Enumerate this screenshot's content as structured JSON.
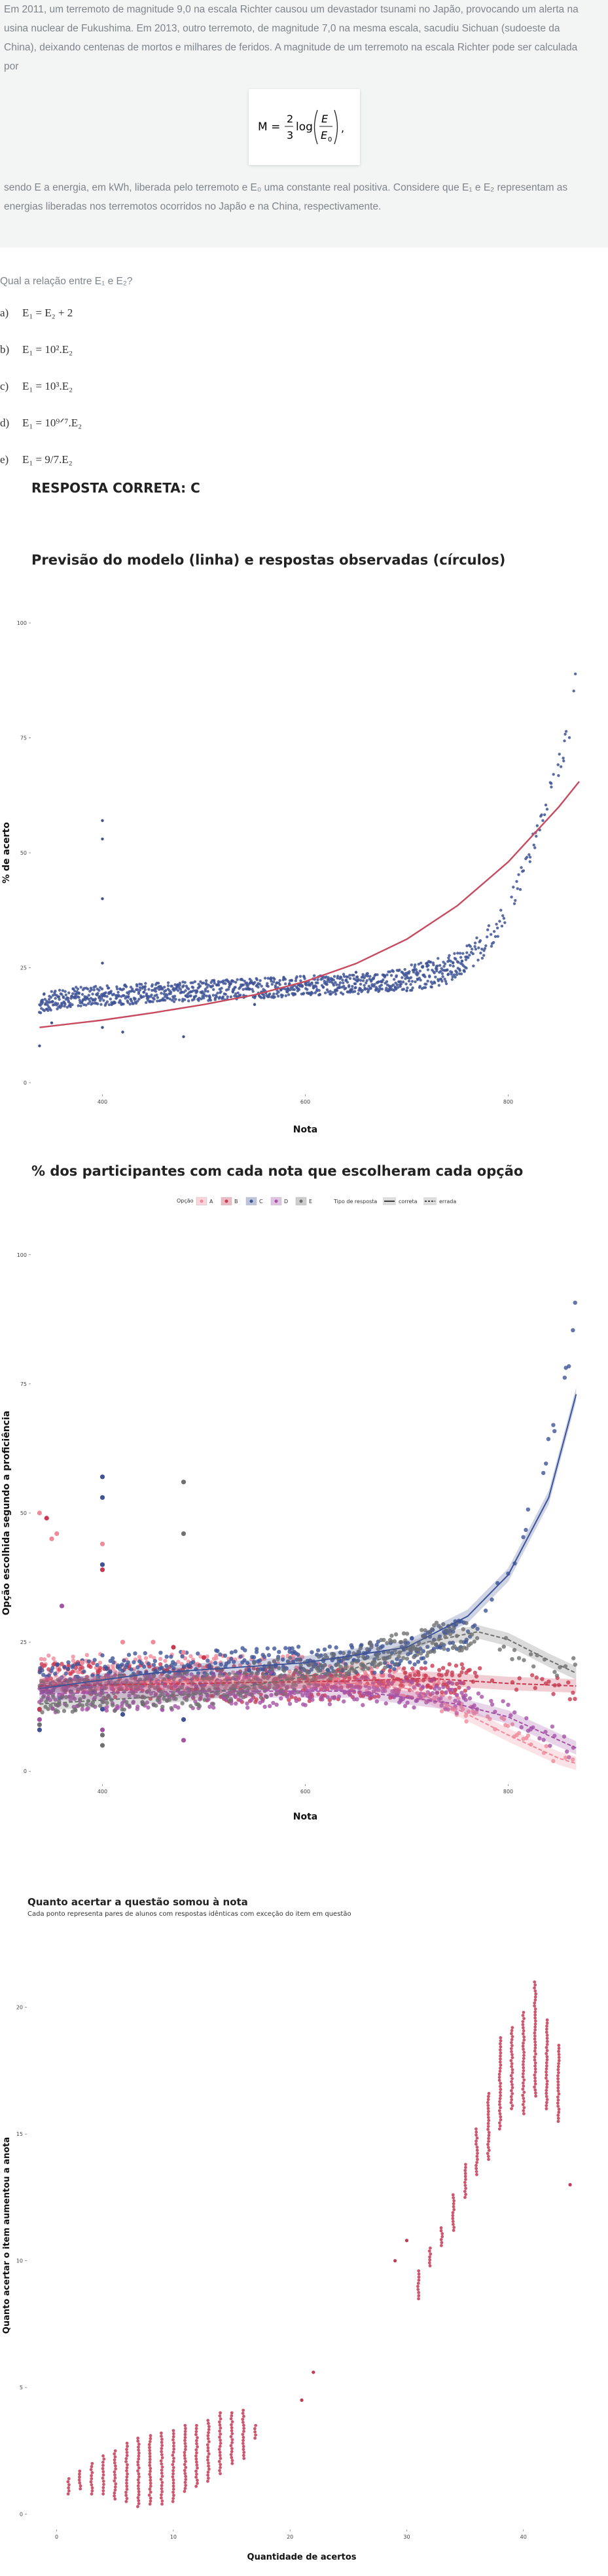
{
  "question": {
    "text_lines": [
      "Em 2011, um terremoto de magnitude 9,0 na escala Richter causou um devastador tsunami no Japão, provocando um alerta na",
      "usina nuclear de Fukushima. Em 2013, outro terremoto, de magnitude 7,0 na mesma escala, sacudiu Sichuan (sudoeste da",
      "China), deixando centenas de mortos e milhares de feridos. A magnitude de um terremoto na escala Richter pode ser calculada",
      "por"
    ],
    "formula": {
      "lhs": "M =",
      "num": "2",
      "den": "3",
      "log": "log",
      "frac_num": "E",
      "frac_den": "E",
      "frac_den_sub": "0",
      "tail": ","
    },
    "text_after_lines": [
      "sendo E a energia, em kWh, liberada pelo terremoto e E₀ uma constante real positiva. Considere que E₁ e E₂ representam as",
      "energias liberadas nos terremotos ocorridos no Japão e na China, respectivamente."
    ],
    "prompt": "Qual a relação entre E₁ e E₂?",
    "alternatives": [
      {
        "letter": "a)",
        "text": "E₁ = E₂ + 2"
      },
      {
        "letter": "b)",
        "text": "E₁ = 10².E₂"
      },
      {
        "letter": "c)",
        "text": "E₁ = 10³.E₂"
      },
      {
        "letter": "d)",
        "text": "E₁ = 10⁹ᐟ⁷.E₂"
      },
      {
        "letter": "e)",
        "text": "E₁ = 9/7.E₂"
      }
    ],
    "answer": "RESPOSTA CORRETA: C"
  },
  "chart_data": [
    {
      "type": "scatter",
      "title": "Previsão do modelo (linha) e respostas observadas (círculos)",
      "xlabel": "Nota",
      "ylabel": "% de acerto",
      "x_ticks": [
        400,
        600,
        800
      ],
      "y_ticks": [
        0,
        25,
        50,
        75,
        100
      ],
      "xlim": [
        330,
        870
      ],
      "ylim": [
        -2,
        102
      ],
      "series": [
        {
          "kind": "observed",
          "color": "#3f5497",
          "trend": [
            [
              338,
              17
            ],
            [
              360,
              18.5
            ],
            [
              400,
              19
            ],
            [
              450,
              19.5
            ],
            [
              500,
              20
            ],
            [
              550,
              20.5
            ],
            [
              600,
              21
            ],
            [
              650,
              21.5
            ],
            [
              700,
              22.5
            ],
            [
              740,
              24.5
            ],
            [
              760,
              27
            ],
            [
              780,
              31
            ],
            [
              800,
              38
            ],
            [
              810,
              43
            ],
            [
              820,
              49
            ],
            [
              830,
              56
            ],
            [
              840,
              63
            ],
            [
              850,
              69
            ],
            [
              860,
              76
            ],
            [
              867,
              90
            ]
          ],
          "outliers": [
            [
              400,
              57
            ],
            [
              400,
              53
            ],
            [
              400,
              40
            ],
            [
              400,
              26
            ],
            [
              338,
              8
            ],
            [
              400,
              12
            ],
            [
              350,
              13
            ],
            [
              420,
              11
            ],
            [
              480,
              10
            ],
            [
              550,
              17
            ],
            [
              650,
              24
            ],
            [
              700,
              20
            ],
            [
              720,
              26
            ]
          ]
        },
        {
          "kind": "model",
          "color": "#c84a5f",
          "points": [
            [
              338,
              12
            ],
            [
              400,
              13.6
            ],
            [
              450,
              15.2
            ],
            [
              500,
              17
            ],
            [
              550,
              19.1
            ],
            [
              600,
              22
            ],
            [
              650,
              25.9
            ],
            [
              700,
              31.2
            ],
            [
              750,
              38.5
            ],
            [
              800,
              48
            ],
            [
              850,
              60
            ],
            [
              870,
              65.5
            ]
          ]
        }
      ]
    },
    {
      "type": "scatter",
      "title": "% dos participantes com cada nota que escolheram cada opção",
      "xlabel": "Nota",
      "ylabel": "Opção escolhida segundo a proficiência",
      "x_ticks": [
        400,
        600,
        800
      ],
      "y_ticks": [
        0,
        25,
        50,
        75,
        100
      ],
      "xlim": [
        330,
        870
      ],
      "ylim": [
        -2,
        102
      ],
      "legend": {
        "option_title": "Opção",
        "options": [
          {
            "name": "A",
            "color": "#f08a9b"
          },
          {
            "name": "B",
            "color": "#c93a52"
          },
          {
            "name": "C",
            "color": "#3f5497"
          },
          {
            "name": "D",
            "color": "#a552a6"
          },
          {
            "name": "E",
            "color": "#6f7070"
          }
        ],
        "type_title": "Tipo de resposta",
        "types": [
          {
            "name": "correta",
            "style": "solid"
          },
          {
            "name": "errada",
            "style": "dashed"
          }
        ]
      },
      "series": [
        {
          "name": "A",
          "color": "#f08a9b",
          "trend": [
            [
              338,
              19
            ],
            [
              400,
              19.5
            ],
            [
              500,
              19
            ],
            [
              600,
              19
            ],
            [
              680,
              18
            ],
            [
              720,
              16
            ],
            [
              760,
              12
            ],
            [
              800,
              8
            ],
            [
              840,
              3.5
            ],
            [
              867,
              1
            ]
          ],
          "model": [
            [
              338,
              17
            ],
            [
              500,
              17.5
            ],
            [
              650,
              17
            ],
            [
              700,
              16
            ],
            [
              750,
              12
            ],
            [
              800,
              7
            ],
            [
              850,
              2.5
            ],
            [
              867,
              1.5
            ]
          ]
        },
        {
          "name": "B",
          "color": "#c93a52",
          "trend": [
            [
              338,
              18
            ],
            [
              400,
              17.5
            ],
            [
              500,
              17
            ],
            [
              600,
              16.5
            ],
            [
              700,
              17
            ],
            [
              760,
              18
            ],
            [
              800,
              17.5
            ],
            [
              840,
              16
            ],
            [
              867,
              16
            ]
          ],
          "model": [
            [
              338,
              16.5
            ],
            [
              500,
              17
            ],
            [
              650,
              17.5
            ],
            [
              720,
              18
            ],
            [
              800,
              17
            ],
            [
              867,
              16.5
            ]
          ]
        },
        {
          "name": "C",
          "color": "#3f5497",
          "trend": [
            [
              338,
              17
            ],
            [
              400,
              19
            ],
            [
              500,
              20
            ],
            [
              600,
              21
            ],
            [
              700,
              22.5
            ],
            [
              760,
              27
            ],
            [
              800,
              38
            ],
            [
              830,
              56
            ],
            [
              850,
              69
            ],
            [
              867,
              90
            ]
          ],
          "model": [
            [
              338,
              16
            ],
            [
              450,
              19
            ],
            [
              600,
              21
            ],
            [
              700,
              24
            ],
            [
              760,
              30
            ],
            [
              800,
              38
            ],
            [
              840,
              53
            ],
            [
              867,
              73
            ]
          ]
        },
        {
          "name": "D",
          "color": "#a552a6",
          "trend": [
            [
              338,
              14.5
            ],
            [
              400,
              15
            ],
            [
              500,
              15.5
            ],
            [
              600,
              16
            ],
            [
              700,
              15.5
            ],
            [
              760,
              14
            ],
            [
              800,
              12
            ],
            [
              840,
              7
            ],
            [
              867,
              3.5
            ]
          ],
          "model": [
            [
              338,
              15
            ],
            [
              500,
              15.5
            ],
            [
              650,
              15.5
            ],
            [
              750,
              13
            ],
            [
              800,
              10.5
            ],
            [
              850,
              6
            ],
            [
              867,
              4.5
            ]
          ]
        },
        {
          "name": "E",
          "color": "#6f7070",
          "trend": [
            [
              338,
              14
            ],
            [
              400,
              15
            ],
            [
              500,
              16
            ],
            [
              600,
              19
            ],
            [
              700,
              24
            ],
            [
              740,
              26.5
            ],
            [
              770,
              26
            ],
            [
              800,
              24
            ],
            [
              840,
              21
            ],
            [
              867,
              20
            ]
          ],
          "model": [
            [
              338,
              13
            ],
            [
              500,
              15
            ],
            [
              650,
              20
            ],
            [
              720,
              25
            ],
            [
              770,
              27
            ],
            [
              800,
              25.5
            ],
            [
              840,
              21.5
            ],
            [
              867,
              19
            ]
          ]
        }
      ],
      "outliers": [
        {
          "color": "#f08a9b",
          "points": [
            [
              338,
              50
            ],
            [
              350,
              45
            ],
            [
              355,
              46
            ],
            [
              400,
              44
            ],
            [
              420,
              25
            ],
            [
              450,
              25
            ],
            [
              480,
              23
            ],
            [
              380,
              21
            ],
            [
              400,
              18
            ]
          ]
        },
        {
          "color": "#c93a52",
          "points": [
            [
              345,
              49
            ],
            [
              400,
              39
            ],
            [
              470,
              24
            ],
            [
              500,
              22
            ],
            [
              338,
              12
            ]
          ]
        },
        {
          "color": "#3f5497",
          "points": [
            [
              400,
              57
            ],
            [
              400,
              53
            ],
            [
              400,
              40
            ],
            [
              338,
              8
            ],
            [
              400,
              12
            ],
            [
              420,
              11
            ],
            [
              480,
              10
            ],
            [
              550,
              17
            ]
          ]
        },
        {
          "color": "#a552a6",
          "points": [
            [
              400,
              8
            ],
            [
              480,
              6
            ],
            [
              360,
              32
            ],
            [
              338,
              10
            ]
          ]
        },
        {
          "color": "#6f7070",
          "points": [
            [
              400,
              7
            ],
            [
              400,
              5
            ],
            [
              480,
              56
            ],
            [
              480,
              46
            ],
            [
              338,
              9
            ],
            [
              440,
              13
            ]
          ]
        }
      ]
    },
    {
      "type": "scatter",
      "title": "Quanto acertar a questão somou à nota",
      "subtitle": "Cada ponto representa pares de alunos com respostas idênticas com exceção do item em questão",
      "xlabel": "Quantidade de acertos",
      "ylabel": "Quanto acertar o item aumentou a anota",
      "x_ticks": [
        0,
        10,
        20,
        30,
        40
      ],
      "y_ticks": [
        0,
        5,
        10,
        15,
        20
      ],
      "xlim": [
        -2.5,
        44.5
      ],
      "ylim": [
        -0.5,
        22.5
      ],
      "color": "#c43a55",
      "columns": [
        {
          "x": 1,
          "min": 0.8,
          "max": 1.4
        },
        {
          "x": 2,
          "min": 1.0,
          "max": 1.7
        },
        {
          "x": 3,
          "min": 0.8,
          "max": 2.0
        },
        {
          "x": 4,
          "min": 0.8,
          "max": 2.3
        },
        {
          "x": 5,
          "min": 0.6,
          "max": 2.5
        },
        {
          "x": 6,
          "min": 0.5,
          "max": 2.8
        },
        {
          "x": 7,
          "min": 0.3,
          "max": 3.0
        },
        {
          "x": 8,
          "min": 0.4,
          "max": 3.1
        },
        {
          "x": 9,
          "min": 0.4,
          "max": 3.2
        },
        {
          "x": 10,
          "min": 0.5,
          "max": 3.3
        },
        {
          "x": 11,
          "min": 0.9,
          "max": 3.5
        },
        {
          "x": 12,
          "min": 1.1,
          "max": 3.5
        },
        {
          "x": 13,
          "min": 1.3,
          "max": 3.7
        },
        {
          "x": 14,
          "min": 1.6,
          "max": 4.0
        },
        {
          "x": 15,
          "min": 2.0,
          "max": 4.0
        },
        {
          "x": 16,
          "min": 2.2,
          "max": 4.1
        },
        {
          "x": 17,
          "min": 3.0,
          "max": 3.5
        },
        {
          "x": 31,
          "min": 8.5,
          "max": 9.6
        },
        {
          "x": 32,
          "min": 9.8,
          "max": 10.5
        },
        {
          "x": 33,
          "min": 10.6,
          "max": 11.3
        },
        {
          "x": 34,
          "min": 11.2,
          "max": 12.6
        },
        {
          "x": 35,
          "min": 12.5,
          "max": 13.8
        },
        {
          "x": 36,
          "min": 13.4,
          "max": 15.2
        },
        {
          "x": 37,
          "min": 14.0,
          "max": 16.6
        },
        {
          "x": 38,
          "min": 15.2,
          "max": 18.8
        },
        {
          "x": 39,
          "min": 16.0,
          "max": 19.2
        },
        {
          "x": 40,
          "min": 15.8,
          "max": 19.8
        },
        {
          "x": 41,
          "min": 16.5,
          "max": 21.0
        },
        {
          "x": 42,
          "min": 16.0,
          "max": 19.5
        },
        {
          "x": 43,
          "min": 15.5,
          "max": 18.5
        }
      ],
      "isolated": [
        [
          21,
          4.5
        ],
        [
          22,
          5.6
        ],
        [
          29,
          10.0
        ],
        [
          30,
          10.8
        ],
        [
          44,
          13.0
        ]
      ]
    }
  ]
}
